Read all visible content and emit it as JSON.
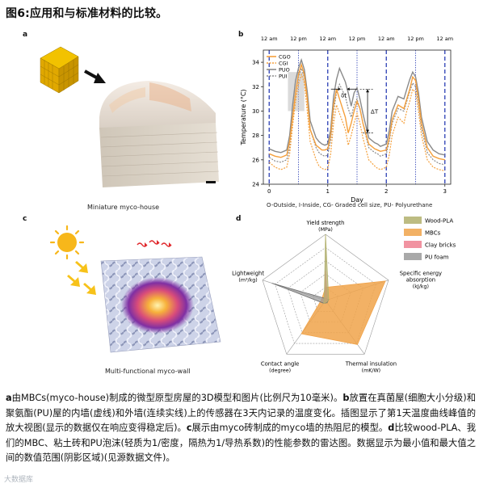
{
  "figure": {
    "title": "图6:应用和与标准材料的比较。",
    "panel_a": {
      "letter": "a",
      "caption": "Miniature myco-house"
    },
    "panel_b": {
      "letter": "b",
      "footer": "O-Outside, I-Inside, CG- Graded cell size, PU- Polyurethane",
      "dt_label": "δt",
      "DT_label": "ΔT"
    },
    "panel_c": {
      "letter": "c",
      "caption": "Multi-functional myco-wall"
    },
    "panel_d": {
      "letter": "d"
    },
    "caption_parts": [
      {
        "t": "a",
        "b": true
      },
      {
        "t": "由MBCs(myco-house)制成的微型原型房屋的3D模型和图片(比例尺为10毫米)。",
        "b": false
      },
      {
        "t": "b",
        "b": true
      },
      {
        "t": "放置在真菌屋(细胞大小分级)和聚氨酯(PU)屋的内墙(虚线)和外墙(连续实线)上的传感器在3天内记录的温度变化。插图显示了第1天温度曲线峰值的放大视图(显示的数据仅在响应变得稳定后)。",
        "b": false
      },
      {
        "t": "c",
        "b": true
      },
      {
        "t": "展示由myco砖制成的myco墙的热阻尼的模型。",
        "b": false
      },
      {
        "t": "d",
        "b": true
      },
      {
        "t": "比较wood-PLA、我们的MBC、粘土砖和PU泡沫(轻质为1/密度，隔热为1/导热系数)的性能参数的雷达图。数据显示为最小值和最大值之间的数值范围(阴影区域)(见源数据文件)。",
        "b": false
      }
    ],
    "watermark": "大数据库"
  },
  "chart_data": [
    {
      "type": "line",
      "panel": "b",
      "xlabel": "Day",
      "ylabel": "Temperature (°C)",
      "xlim": [
        -0.1,
        3.1
      ],
      "ylim": [
        24,
        35
      ],
      "x_ticks": [
        0,
        1,
        2,
        3
      ],
      "y_ticks": [
        24,
        26,
        28,
        30,
        32,
        34
      ],
      "top_labels": [
        {
          "x": 0,
          "text": "12 am"
        },
        {
          "x": 0.5,
          "text": "12 pm"
        },
        {
          "x": 1,
          "text": "12 am"
        },
        {
          "x": 1.5,
          "text": "12 pm"
        },
        {
          "x": 2,
          "text": "12 am"
        },
        {
          "x": 2.5,
          "text": "12 pm"
        },
        {
          "x": 3,
          "text": "12 am"
        }
      ],
      "legend": {
        "placement": "top-left",
        "entries": [
          "CGO",
          "CGI",
          "PUO",
          "PUI"
        ]
      },
      "colors": {
        "CGO": "#f5a03c",
        "CGI": "#f5a03c",
        "PUO": "#8a8a8a",
        "PUI": "#8a8a8a",
        "marker": "#2b3fb5"
      },
      "series": [
        {
          "name": "CGO",
          "style": "solid",
          "x": [
            0,
            0.1,
            0.2,
            0.3,
            0.35,
            0.4,
            0.45,
            0.5,
            0.55,
            0.6,
            0.65,
            0.7,
            0.8,
            0.85,
            0.9,
            0.95,
            1.0,
            1.05,
            1.1,
            1.15,
            1.2,
            1.3,
            1.35,
            1.4,
            1.45,
            1.5,
            1.55,
            1.6,
            1.7,
            1.8,
            1.85,
            1.9,
            2.0,
            2.05,
            2.1,
            2.2,
            2.3,
            2.35,
            2.4,
            2.45,
            2.5,
            2.55,
            2.6,
            2.7,
            2.8,
            2.9,
            3.0
          ],
          "y": [
            26.5,
            26.3,
            26.2,
            26.4,
            27.5,
            29.5,
            31.5,
            33.0,
            33.8,
            33.0,
            31.0,
            28.5,
            27.2,
            27.0,
            26.8,
            26.8,
            26.9,
            28.0,
            30.5,
            31.8,
            31.0,
            29.5,
            28.2,
            29.0,
            30.0,
            30.8,
            30.2,
            29.0,
            27.3,
            26.9,
            26.8,
            26.7,
            26.8,
            27.8,
            29.3,
            30.5,
            30.2,
            31.0,
            31.8,
            32.8,
            32.5,
            31.0,
            29.0,
            27.0,
            26.3,
            26.1,
            26.0
          ]
        },
        {
          "name": "CGI",
          "style": "dashed",
          "x": [
            0,
            0.1,
            0.2,
            0.3,
            0.35,
            0.4,
            0.45,
            0.5,
            0.55,
            0.6,
            0.65,
            0.7,
            0.8,
            0.85,
            0.9,
            0.95,
            1.0,
            1.05,
            1.1,
            1.15,
            1.2,
            1.3,
            1.35,
            1.4,
            1.45,
            1.5,
            1.55,
            1.6,
            1.7,
            1.8,
            1.85,
            1.9,
            2.0,
            2.05,
            2.1,
            2.2,
            2.3,
            2.35,
            2.4,
            2.45,
            2.5,
            2.55,
            2.6,
            2.7,
            2.8,
            2.9,
            3.0
          ],
          "y": [
            25.8,
            25.4,
            25.2,
            25.4,
            26.5,
            28.8,
            30.8,
            32.2,
            33.0,
            32.3,
            30.0,
            27.5,
            26.0,
            25.5,
            25.3,
            25.2,
            25.3,
            26.5,
            29.0,
            30.5,
            29.8,
            28.5,
            27.2,
            28.0,
            29.0,
            29.8,
            29.0,
            27.8,
            26.0,
            25.5,
            25.3,
            25.2,
            25.4,
            26.4,
            28.0,
            29.5,
            29.0,
            30.0,
            30.8,
            31.8,
            31.5,
            30.0,
            28.0,
            26.0,
            25.4,
            25.2,
            25.1
          ]
        },
        {
          "name": "PUO",
          "style": "solid",
          "x": [
            0,
            0.1,
            0.2,
            0.3,
            0.35,
            0.4,
            0.45,
            0.5,
            0.55,
            0.6,
            0.65,
            0.7,
            0.8,
            0.85,
            0.9,
            0.95,
            1.0,
            1.05,
            1.1,
            1.15,
            1.2,
            1.3,
            1.35,
            1.4,
            1.45,
            1.5,
            1.55,
            1.6,
            1.7,
            1.8,
            1.85,
            1.9,
            2.0,
            2.05,
            2.1,
            2.2,
            2.3,
            2.35,
            2.4,
            2.45,
            2.5,
            2.55,
            2.6,
            2.7,
            2.8,
            2.9,
            3.0
          ],
          "y": [
            26.9,
            26.7,
            26.6,
            26.8,
            28.0,
            30.5,
            32.5,
            33.5,
            34.2,
            33.4,
            31.6,
            29.2,
            27.8,
            27.5,
            27.3,
            27.2,
            27.3,
            28.5,
            31.2,
            32.6,
            33.5,
            32.4,
            31.5,
            30.4,
            31.5,
            31.9,
            31.0,
            29.8,
            27.8,
            27.4,
            27.3,
            27.1,
            27.3,
            28.4,
            30.0,
            31.2,
            31.0,
            31.8,
            32.6,
            33.2,
            32.8,
            31.5,
            29.5,
            27.5,
            26.8,
            26.5,
            26.4
          ]
        },
        {
          "name": "PUI",
          "style": "dashed",
          "x": [
            0,
            0.1,
            0.2,
            0.3,
            0.35,
            0.4,
            0.45,
            0.5,
            0.55,
            0.6,
            0.65,
            0.7,
            0.8,
            0.85,
            0.9,
            0.95,
            1.0,
            1.05,
            1.1,
            1.15,
            1.2,
            1.3,
            1.35,
            1.4,
            1.45,
            1.5,
            1.55,
            1.6,
            1.7,
            1.8,
            1.85,
            1.9,
            2.0,
            2.05,
            2.1,
            2.2,
            2.3,
            2.35,
            2.4,
            2.45,
            2.5,
            2.55,
            2.6,
            2.7,
            2.8,
            2.9,
            3.0
          ],
          "y": [
            26.2,
            25.9,
            25.8,
            26.0,
            27.0,
            29.5,
            31.5,
            32.8,
            33.5,
            32.8,
            31.0,
            28.5,
            27.0,
            26.6,
            26.4,
            26.3,
            26.4,
            27.6,
            30.0,
            31.5,
            32.2,
            31.2,
            30.2,
            29.5,
            30.5,
            31.0,
            30.2,
            29.0,
            27.0,
            26.6,
            26.5,
            26.3,
            26.5,
            27.5,
            29.0,
            30.2,
            30.0,
            30.8,
            31.6,
            32.3,
            32.0,
            30.6,
            28.6,
            26.6,
            26.0,
            25.7,
            25.6
          ]
        }
      ],
      "shaded_region": {
        "x": [
          0.32,
          0.6
        ],
        "y": [
          30.0,
          33.2
        ]
      }
    },
    {
      "type": "radar",
      "panel": "d",
      "axes": [
        {
          "name": "Yield strength",
          "unit": "(MPa)"
        },
        {
          "name": "Specific energy absorption",
          "unit": "(kJ/kg)"
        },
        {
          "name": "Thermal insulation",
          "unit": "(mK/W)"
        },
        {
          "name": "Contact angle",
          "unit": "(degree)"
        },
        {
          "name": "Lightweight",
          "unit": "(m³/kg)"
        }
      ],
      "legend": {
        "placement": "top-right"
      },
      "series": [
        {
          "name": "Wood-PLA",
          "color": "#b2b06c",
          "values": [
            1.0,
            0.05,
            0.03,
            0.05,
            0.02
          ]
        },
        {
          "name": "MBCs",
          "color": "#f0a34a",
          "values": [
            0.2,
            0.95,
            0.82,
            0.62,
            0.06
          ]
        },
        {
          "name": "Clay bricks",
          "color": "#ee8090",
          "values": [
            0.45,
            0.03,
            0.02,
            0.03,
            0.01
          ]
        },
        {
          "name": "PU foam",
          "color": "#9a9a9a",
          "values": [
            0.03,
            0.05,
            0.04,
            0.05,
            0.85
          ]
        }
      ]
    }
  ]
}
